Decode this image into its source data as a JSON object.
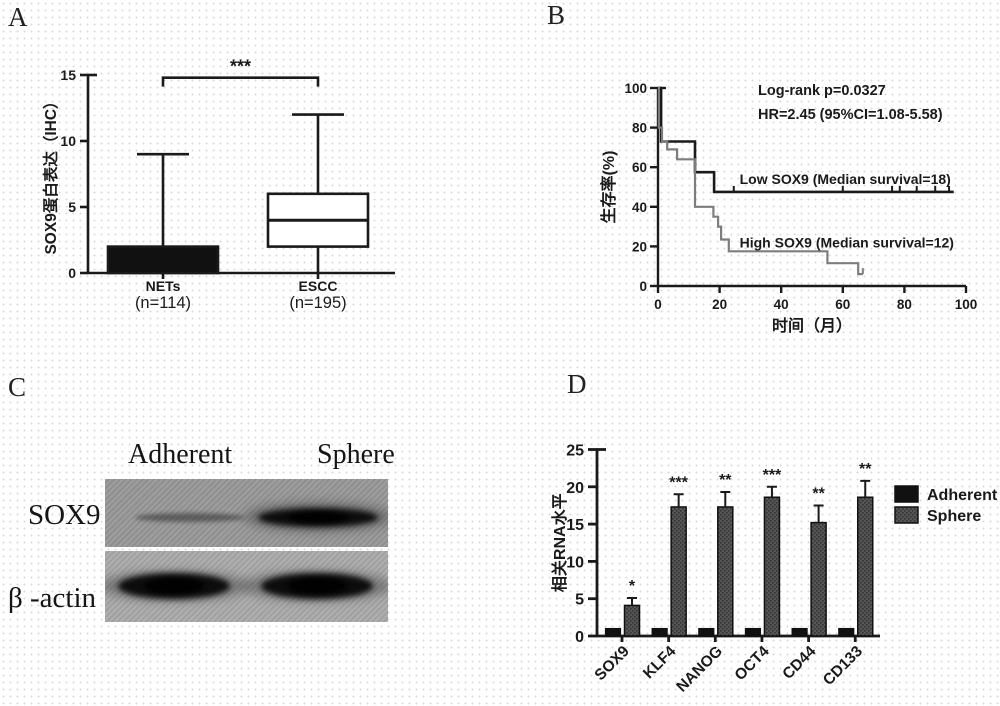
{
  "figure": {
    "panels": {
      "A": {
        "label": "A"
      },
      "B": {
        "label": "B"
      },
      "C": {
        "label": "C",
        "lanes": [
          "Adherent",
          "Sphere"
        ],
        "rows": [
          {
            "label": "SOX9",
            "bands": [
              {
                "lane": "Adherent",
                "intensity": "faint"
              },
              {
                "lane": "Sphere",
                "intensity": "strong"
              }
            ]
          },
          {
            "label": "β -actin",
            "bands": [
              {
                "lane": "Adherent",
                "intensity": "strong"
              },
              {
                "lane": "Sphere",
                "intensity": "strong"
              }
            ]
          }
        ]
      },
      "D": {
        "label": "D"
      }
    },
    "colors": {
      "ink": "#1a1a1a",
      "gray_curve": "#7d7d7d",
      "sphere_fill": "#555555",
      "blot_bg_sox9": "#979797",
      "blot_bg_actin": "#a9a9a9"
    }
  },
  "chart_data": [
    {
      "panel": "A",
      "type": "box",
      "title": "",
      "ylabel": "SOX9蛋白表达（IHC）",
      "ylim": [
        0,
        15
      ],
      "yticks": [
        0,
        5,
        10,
        15
      ],
      "groups": [
        {
          "label": "NETs",
          "sublabel": "(n=114)",
          "whisker_low": 0,
          "q1": 0,
          "median": null,
          "q3": 2,
          "whisker_high": 9,
          "fill": "black"
        },
        {
          "label": "ESCC",
          "sublabel": "(n=195)",
          "whisker_low": 0,
          "q1": 2,
          "median": 4,
          "q3": 6,
          "whisker_high": 12,
          "fill": "white"
        }
      ],
      "significance": {
        "label": "***",
        "y": 14.8
      }
    },
    {
      "panel": "B",
      "type": "line",
      "subtype": "kaplan-meier-step",
      "xlabel": "时间（月）",
      "ylabel": "生存率(%)",
      "xlim": [
        0,
        100
      ],
      "ylim": [
        0,
        100
      ],
      "xticks": [
        0,
        20,
        40,
        60,
        80,
        100
      ],
      "yticks": [
        0,
        20,
        40,
        60,
        80,
        100
      ],
      "annotations": [
        "Log-rank p=0.0327",
        "HR=2.45 (95%CI=1.08-5.58)"
      ],
      "series": [
        {
          "name": "Low SOX9 (Median survival=18)",
          "color": "#1a1a1a",
          "steps": [
            [
              0,
              100
            ],
            [
              1,
              100
            ],
            [
              1,
              73
            ],
            [
              12,
              73
            ],
            [
              12,
              57.5
            ],
            [
              18.2,
              57.5
            ],
            [
              18.2,
              47.5
            ],
            [
              96,
              47.5
            ]
          ],
          "censor_marks": [
            [
              24.6,
              47.5
            ],
            [
              60,
              47.5
            ],
            [
              76,
              47.5
            ],
            [
              78.5,
              47.5
            ],
            [
              84,
              47.5
            ],
            [
              90,
              47.5
            ],
            [
              94.5,
              47.5
            ]
          ],
          "label_pos": [
            26.5,
            54
          ]
        },
        {
          "name": "High SOX9 (Median survival=12)",
          "color": "#7d7d7d",
          "steps": [
            [
              0,
              100
            ],
            [
              0.3,
              100
            ],
            [
              0.3,
              80
            ],
            [
              1.3,
              80
            ],
            [
              1.3,
              73
            ],
            [
              3,
              73
            ],
            [
              3,
              69
            ],
            [
              6.2,
              69
            ],
            [
              6.2,
              64
            ],
            [
              12,
              64
            ],
            [
              12,
              40
            ],
            [
              18,
              40
            ],
            [
              18,
              35
            ],
            [
              19.5,
              35
            ],
            [
              19.5,
              30
            ],
            [
              20.5,
              30
            ],
            [
              20.5,
              23.5
            ],
            [
              23,
              23.5
            ],
            [
              23,
              17.5
            ],
            [
              55,
              17.5
            ],
            [
              55,
              11.5
            ],
            [
              65,
              11.5
            ],
            [
              65,
              6
            ],
            [
              66.5,
              6
            ]
          ],
          "censor_marks": [
            [
              66.5,
              6
            ]
          ],
          "label_pos": [
            26.5,
            22
          ]
        }
      ]
    },
    {
      "panel": "D",
      "type": "bar",
      "ylabel": "相关RNA水平",
      "ylim": [
        0,
        25
      ],
      "yticks": [
        0,
        5,
        10,
        15,
        20,
        25
      ],
      "categories": [
        "SOX9",
        "KLF4",
        "NANOG",
        "OCT4",
        "CD44",
        "CD133"
      ],
      "series": [
        {
          "name": "Adherent",
          "fill": "#111111",
          "values": [
            1,
            1,
            1,
            1,
            1,
            1
          ],
          "errors": [
            0,
            0,
            0,
            0,
            0,
            0
          ]
        },
        {
          "name": "Sphere",
          "fill": "#555555",
          "values": [
            4.1,
            17.3,
            17.3,
            18.6,
            15.2,
            18.6
          ],
          "errors": [
            1.0,
            1.7,
            2.0,
            1.4,
            2.3,
            2.2
          ]
        }
      ],
      "significance": [
        "*",
        "***",
        "**",
        "***",
        "**",
        "**"
      ],
      "legend_position": "right"
    }
  ]
}
